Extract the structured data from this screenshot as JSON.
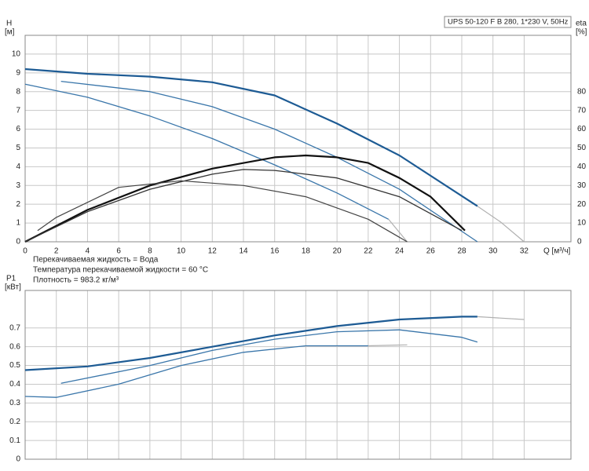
{
  "chart_data": [
    {
      "type": "line",
      "title": "UPS 50-120 F B 280, 1*230 V, 50Hz",
      "y_label": "H",
      "y_unit": "[м]",
      "y2_label": "eta",
      "y2_unit": "[%]",
      "x_label": "Q [м³/ч]",
      "xlim": [
        0,
        35
      ],
      "xticks": [
        0,
        2,
        4,
        6,
        8,
        10,
        12,
        14,
        16,
        18,
        20,
        22,
        24,
        26,
        28,
        30,
        32
      ],
      "ylim": [
        0,
        11
      ],
      "yticks": [
        0,
        1,
        2,
        3,
        4,
        5,
        6,
        7,
        8,
        9,
        10
      ],
      "y2lim": [
        0,
        110
      ],
      "y2ticks": [
        0,
        10,
        20,
        30,
        40,
        50,
        60,
        70,
        80
      ],
      "grid": true,
      "series": [
        {
          "color": "#1d5b94",
          "width": 2.2,
          "x": [
            0,
            4,
            8,
            12,
            16,
            20,
            24,
            29
          ],
          "values": [
            9.2,
            8.95,
            8.8,
            8.5,
            7.8,
            6.3,
            4.6,
            1.9
          ]
        },
        {
          "color": "#b0b0b0",
          "width": 1.2,
          "x": [
            29,
            30.5,
            32
          ],
          "values": [
            1.9,
            1.05,
            0
          ]
        },
        {
          "color": "#3a76aa",
          "width": 1.3,
          "x": [
            2.3,
            8,
            12,
            16,
            20,
            24,
            29
          ],
          "values": [
            8.55,
            8.0,
            7.2,
            6.0,
            4.5,
            2.8,
            0
          ]
        },
        {
          "color": "#3a76aa",
          "width": 1.3,
          "x": [
            0,
            4,
            8,
            12,
            16,
            20,
            23.3
          ],
          "values": [
            8.4,
            7.7,
            6.7,
            5.5,
            4.1,
            2.6,
            1.2
          ]
        },
        {
          "color": "#b0b0b0",
          "width": 1.2,
          "x": [
            23.3,
            24.5
          ],
          "values": [
            1.2,
            0
          ]
        },
        {
          "color": "#111111",
          "width": 2.2,
          "axis": "y2",
          "x": [
            0,
            4,
            8,
            12,
            16,
            18,
            20,
            22,
            24,
            26,
            28.2
          ],
          "values": [
            0,
            17,
            30,
            39,
            45,
            46,
            45,
            42,
            34,
            24,
            6
          ]
        },
        {
          "color": "#333333",
          "width": 1.3,
          "axis": "y2",
          "x": [
            0,
            4,
            8,
            12,
            14,
            16,
            20,
            24,
            28
          ],
          "values": [
            0,
            16,
            28,
            36,
            38.5,
            38,
            34,
            24,
            6
          ]
        },
        {
          "color": "#444444",
          "width": 1.2,
          "axis": "y2",
          "x": [
            0.8,
            2,
            6,
            10,
            14,
            18,
            22,
            24.5
          ],
          "values": [
            6,
            13,
            29,
            32.5,
            30,
            24,
            12,
            0
          ]
        }
      ]
    },
    {
      "type": "line",
      "y_label": "P1",
      "y_unit": "[кВт]",
      "xlim": [
        0,
        35
      ],
      "xticks": [
        0,
        2,
        4,
        6,
        8,
        10,
        12,
        14,
        16,
        18,
        20,
        22,
        24,
        26,
        28,
        30,
        32
      ],
      "ylim": [
        0,
        0.9
      ],
      "yticks": [
        0,
        0.1,
        0.2,
        0.3,
        0.4,
        0.5,
        0.6,
        0.7
      ],
      "grid": true,
      "series": [
        {
          "color": "#1d5b94",
          "width": 2.2,
          "x": [
            0,
            4,
            8,
            12,
            16,
            20,
            24,
            28,
            29
          ],
          "values": [
            0.475,
            0.495,
            0.54,
            0.6,
            0.66,
            0.71,
            0.745,
            0.76,
            0.76
          ]
        },
        {
          "color": "#b0b0b0",
          "width": 1.2,
          "x": [
            29,
            32
          ],
          "values": [
            0.76,
            0.745
          ]
        },
        {
          "color": "#3a76aa",
          "width": 1.3,
          "x": [
            2.3,
            8,
            12,
            16,
            20,
            24,
            28,
            29
          ],
          "values": [
            0.405,
            0.5,
            0.58,
            0.64,
            0.68,
            0.69,
            0.65,
            0.625
          ]
        },
        {
          "color": "#3a76aa",
          "width": 1.3,
          "x": [
            0,
            2,
            6,
            10,
            14,
            18,
            22
          ],
          "values": [
            0.335,
            0.33,
            0.4,
            0.5,
            0.57,
            0.605,
            0.605
          ]
        },
        {
          "color": "#b0b0b0",
          "width": 1.2,
          "x": [
            22,
            24.5
          ],
          "values": [
            0.605,
            0.61
          ]
        }
      ]
    }
  ],
  "fluid_info": [
    "Перекачиваемая жидкость = Вода",
    "Температура перекачиваемой жидкости = 60 °C",
    "Плотность = 983.2 кг/м³"
  ]
}
